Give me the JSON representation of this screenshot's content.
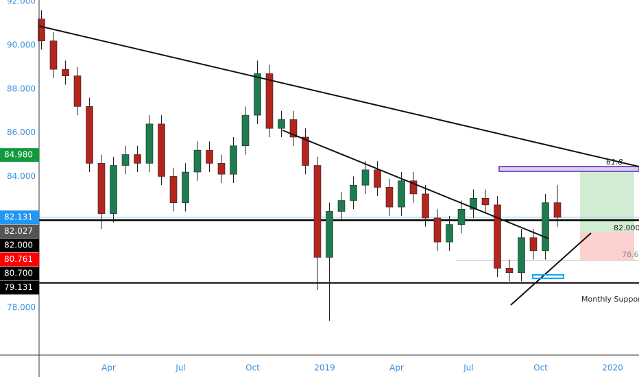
{
  "chart_data": {
    "type": "candlestick",
    "x": [
      0.2,
      0.7,
      1.2,
      1.7,
      2.2,
      2.7,
      3.2,
      3.7,
      4.2,
      4.7,
      5.2,
      5.7,
      6.2,
      6.7,
      7.2,
      7.7,
      8.2,
      8.7,
      9.2,
      9.7,
      10.2,
      10.7,
      11.2,
      11.7,
      12.2,
      12.7,
      13.2,
      13.7,
      14.2,
      14.7,
      15.2,
      15.7,
      16.2,
      16.7,
      17.2,
      17.7,
      18.2,
      18.7,
      19.2,
      19.7,
      20.2,
      20.7,
      21.2,
      21.7
    ],
    "open": [
      91.2,
      90.2,
      88.9,
      88.6,
      87.2,
      84.6,
      82.3,
      84.5,
      85.0,
      84.6,
      86.4,
      84.0,
      82.8,
      84.2,
      85.2,
      84.6,
      84.1,
      85.4,
      86.8,
      88.7,
      86.2,
      86.6,
      85.8,
      84.5,
      80.3,
      82.4,
      82.9,
      83.6,
      84.3,
      83.5,
      82.6,
      83.8,
      83.2,
      82.1,
      81.0,
      81.8,
      82.5,
      83.0,
      82.7,
      79.8,
      79.6,
      81.2,
      80.6,
      82.8
    ],
    "high": [
      91.6,
      90.6,
      89.3,
      89.0,
      87.6,
      85.0,
      84.9,
      85.4,
      85.4,
      86.8,
      86.8,
      84.4,
      84.6,
      85.6,
      85.6,
      85.0,
      85.8,
      87.2,
      89.3,
      89.1,
      87.0,
      87.0,
      86.2,
      84.9,
      82.8,
      83.3,
      84.0,
      84.7,
      84.7,
      83.9,
      84.2,
      84.2,
      83.6,
      82.5,
      82.2,
      82.9,
      83.4,
      83.4,
      83.1,
      80.2,
      81.6,
      81.6,
      83.2,
      83.6
    ],
    "low": [
      89.8,
      88.5,
      88.2,
      86.8,
      84.2,
      81.6,
      81.9,
      84.1,
      84.2,
      84.2,
      83.6,
      82.4,
      82.4,
      83.8,
      84.2,
      83.7,
      83.7,
      85.0,
      86.4,
      85.8,
      85.8,
      85.4,
      84.1,
      78.8,
      77.4,
      82.0,
      82.5,
      83.2,
      83.1,
      82.2,
      82.2,
      82.8,
      81.7,
      80.6,
      80.6,
      81.4,
      82.1,
      82.3,
      79.4,
      79.2,
      79.2,
      80.2,
      80.2,
      81.7
    ],
    "close": [
      90.2,
      88.9,
      88.6,
      87.2,
      84.6,
      82.3,
      84.5,
      85.0,
      84.6,
      86.4,
      84.0,
      82.8,
      84.2,
      85.2,
      84.6,
      84.1,
      85.4,
      86.8,
      88.7,
      86.2,
      86.6,
      85.8,
      84.5,
      80.3,
      82.4,
      82.9,
      83.6,
      84.3,
      83.5,
      82.6,
      83.8,
      83.2,
      82.1,
      81.0,
      81.8,
      82.5,
      83.0,
      82.7,
      79.8,
      79.6,
      81.2,
      80.6,
      82.8,
      82.13
    ],
    "up_color": "#1e7d4f",
    "down_color": "#b3261e",
    "xlim": [
      0.1,
      25.1
    ],
    "xticks": [
      {
        "value": 3,
        "label": "Apr"
      },
      {
        "value": 6,
        "label": "Jul"
      },
      {
        "value": 9,
        "label": "Oct"
      },
      {
        "value": 12,
        "label": "2019"
      },
      {
        "value": 15,
        "label": "Apr"
      },
      {
        "value": 18,
        "label": "Jul"
      },
      {
        "value": 21,
        "label": "Oct"
      },
      {
        "value": 24,
        "label": "2020"
      }
    ],
    "ylim": [
      75.83,
      92.07
    ],
    "yticks": [
      {
        "value": 78,
        "label": "78.000"
      },
      {
        "value": 80,
        "label": "80.000"
      },
      {
        "value": 82,
        "label": "82.000"
      },
      {
        "value": 84,
        "label": "84.000"
      },
      {
        "value": 86,
        "label": "86.000"
      },
      {
        "value": 88,
        "label": "88.000"
      },
      {
        "value": 90,
        "label": "90.000"
      },
      {
        "value": 92,
        "label": "92.000"
      }
    ],
    "price_tags": [
      {
        "value": 84.98,
        "label": "84.980",
        "color": "#109a3c"
      },
      {
        "value": 82.131,
        "label": "82.131",
        "color": "#2196f3"
      },
      {
        "value": 82.027,
        "label": "82.027",
        "color": "#555555"
      },
      {
        "value": 82.0,
        "label": "82.000",
        "color": "#000000"
      },
      {
        "value": 80.761,
        "label": "80.761",
        "color": "#ff0000"
      },
      {
        "value": 80.7,
        "label": "80.700",
        "color": "#000000"
      },
      {
        "value": 79.131,
        "label": "79.131",
        "color": "#000000"
      }
    ],
    "annotations": [
      "61.8",
      "82.000",
      "78.6",
      "Monthly Support"
    ]
  }
}
